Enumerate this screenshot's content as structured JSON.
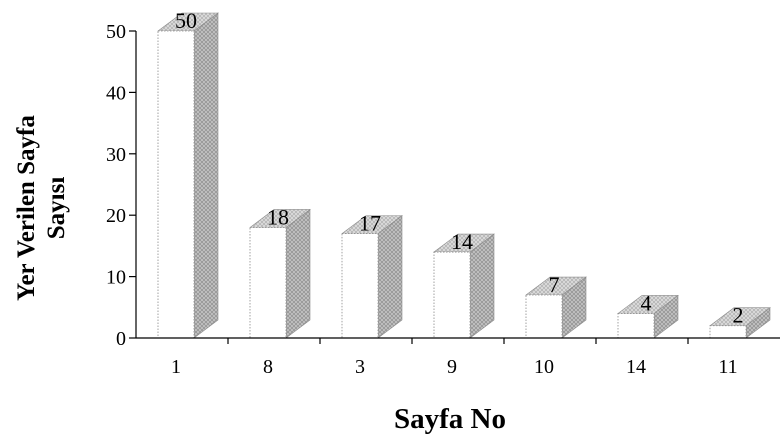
{
  "chart_data": {
    "type": "bar",
    "style": "3d-column",
    "categories": [
      "1",
      "8",
      "3",
      "9",
      "10",
      "14",
      "11"
    ],
    "values": [
      50,
      18,
      17,
      14,
      7,
      4,
      2
    ],
    "data_labels": [
      "50",
      "18",
      "17",
      "14",
      "7",
      "4",
      "2"
    ],
    "title": "",
    "xlabel": "Sayfa No",
    "ylabel_lines": [
      "Yer Verilen Sayfa",
      "Sayısı"
    ],
    "ylim": [
      0,
      50
    ],
    "yticks": [
      0,
      10,
      20,
      30,
      40,
      50
    ],
    "grid": false,
    "legend": "none",
    "colors": {
      "front": "#ffffff",
      "side": "#b8b8b8",
      "top": "#d4d4d4",
      "edge": "#8a8a8a"
    }
  }
}
